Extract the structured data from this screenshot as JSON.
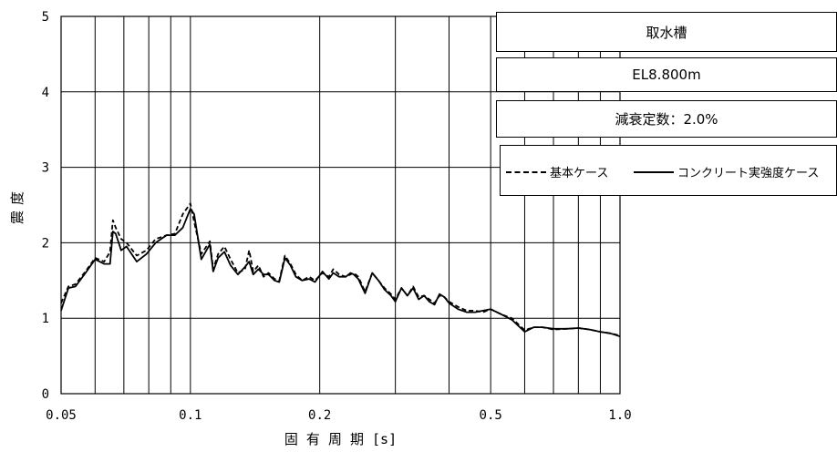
{
  "chart_data": {
    "type": "line",
    "title_lines": [
      "取水槽",
      "EL8.800m",
      "減衰定数：2.0%"
    ],
    "xlabel": "固 有 周 期 [s]",
    "ylabel": "震度",
    "x_scale": "log",
    "xlim": [
      0.05,
      1.0
    ],
    "ylim": [
      0,
      5
    ],
    "x_ticks": [
      0.05,
      0.1,
      0.2,
      0.5,
      1.0
    ],
    "x_tick_labels": [
      "0.05",
      "0.1",
      "0.2",
      "0.5",
      "1.0"
    ],
    "y_ticks": [
      0,
      1,
      2,
      3,
      4,
      5
    ],
    "y_tick_labels": [
      "0",
      "1",
      "2",
      "3",
      "4",
      "5"
    ],
    "x_minor_gridlines": [
      0.06,
      0.07,
      0.08,
      0.09,
      0.3,
      0.4,
      0.6,
      0.7,
      0.8,
      0.9
    ],
    "grid": true,
    "legend_position": "right",
    "series": [
      {
        "name": "基本ケース",
        "style": "dashed",
        "color": "#000000",
        "x": [
          0.05,
          0.052,
          0.054,
          0.057,
          0.06,
          0.063,
          0.065,
          0.066,
          0.067,
          0.069,
          0.071,
          0.075,
          0.079,
          0.083,
          0.088,
          0.092,
          0.096,
          0.1,
          0.102,
          0.106,
          0.111,
          0.113,
          0.116,
          0.12,
          0.124,
          0.129,
          0.134,
          0.137,
          0.14,
          0.144,
          0.148,
          0.152,
          0.157,
          0.161,
          0.166,
          0.171,
          0.176,
          0.182,
          0.189,
          0.195,
          0.203,
          0.21,
          0.215,
          0.222,
          0.23,
          0.236,
          0.24,
          0.246,
          0.255,
          0.265,
          0.274,
          0.283,
          0.293,
          0.3,
          0.31,
          0.32,
          0.33,
          0.34,
          0.35,
          0.36,
          0.37,
          0.38,
          0.39,
          0.4,
          0.42,
          0.44,
          0.46,
          0.48,
          0.5,
          0.53,
          0.56,
          0.6,
          0.63,
          0.66,
          0.7,
          0.75,
          0.8,
          0.85,
          0.9,
          0.95,
          1.0
        ],
        "y": [
          1.2,
          1.42,
          1.45,
          1.62,
          1.8,
          1.75,
          1.88,
          2.3,
          2.2,
          2.05,
          2.0,
          1.83,
          1.9,
          2.05,
          2.1,
          2.12,
          2.38,
          2.52,
          2.28,
          1.85,
          2.02,
          1.65,
          1.85,
          1.95,
          1.78,
          1.6,
          1.65,
          1.9,
          1.62,
          1.7,
          1.55,
          1.6,
          1.52,
          1.5,
          1.83,
          1.72,
          1.58,
          1.5,
          1.55,
          1.5,
          1.6,
          1.55,
          1.65,
          1.58,
          1.55,
          1.58,
          1.6,
          1.55,
          1.35,
          1.6,
          1.5,
          1.4,
          1.32,
          1.25,
          1.4,
          1.3,
          1.42,
          1.28,
          1.3,
          1.25,
          1.2,
          1.3,
          1.28,
          1.22,
          1.15,
          1.1,
          1.1,
          1.08,
          1.12,
          1.05,
          1.0,
          0.84,
          0.88,
          0.88,
          0.85,
          0.86,
          0.87,
          0.85,
          0.82,
          0.8,
          0.77
        ]
      },
      {
        "name": "コンクリート実強度ケース",
        "style": "solid",
        "color": "#000000",
        "x": [
          0.05,
          0.052,
          0.054,
          0.057,
          0.06,
          0.063,
          0.065,
          0.066,
          0.067,
          0.069,
          0.071,
          0.075,
          0.079,
          0.083,
          0.088,
          0.092,
          0.096,
          0.1,
          0.102,
          0.106,
          0.111,
          0.113,
          0.116,
          0.12,
          0.124,
          0.129,
          0.134,
          0.137,
          0.14,
          0.144,
          0.148,
          0.152,
          0.157,
          0.161,
          0.166,
          0.171,
          0.176,
          0.182,
          0.189,
          0.195,
          0.203,
          0.21,
          0.215,
          0.222,
          0.23,
          0.236,
          0.24,
          0.246,
          0.255,
          0.265,
          0.274,
          0.283,
          0.293,
          0.3,
          0.31,
          0.32,
          0.33,
          0.34,
          0.35,
          0.36,
          0.37,
          0.38,
          0.39,
          0.4,
          0.42,
          0.44,
          0.46,
          0.48,
          0.5,
          0.53,
          0.56,
          0.6,
          0.63,
          0.66,
          0.7,
          0.75,
          0.8,
          0.85,
          0.9,
          0.95,
          1.0
        ],
        "y": [
          1.1,
          1.4,
          1.42,
          1.6,
          1.78,
          1.72,
          1.72,
          2.15,
          2.12,
          1.9,
          1.95,
          1.75,
          1.85,
          2.0,
          2.1,
          2.1,
          2.2,
          2.45,
          2.38,
          1.78,
          1.98,
          1.62,
          1.8,
          1.88,
          1.7,
          1.58,
          1.68,
          1.75,
          1.58,
          1.65,
          1.58,
          1.58,
          1.5,
          1.48,
          1.8,
          1.7,
          1.55,
          1.5,
          1.52,
          1.48,
          1.62,
          1.52,
          1.6,
          1.55,
          1.55,
          1.6,
          1.58,
          1.52,
          1.33,
          1.6,
          1.5,
          1.38,
          1.3,
          1.22,
          1.4,
          1.3,
          1.4,
          1.25,
          1.3,
          1.22,
          1.18,
          1.32,
          1.28,
          1.2,
          1.12,
          1.08,
          1.08,
          1.1,
          1.12,
          1.05,
          0.98,
          0.82,
          0.88,
          0.88,
          0.86,
          0.86,
          0.87,
          0.85,
          0.82,
          0.8,
          0.76
        ]
      }
    ]
  }
}
